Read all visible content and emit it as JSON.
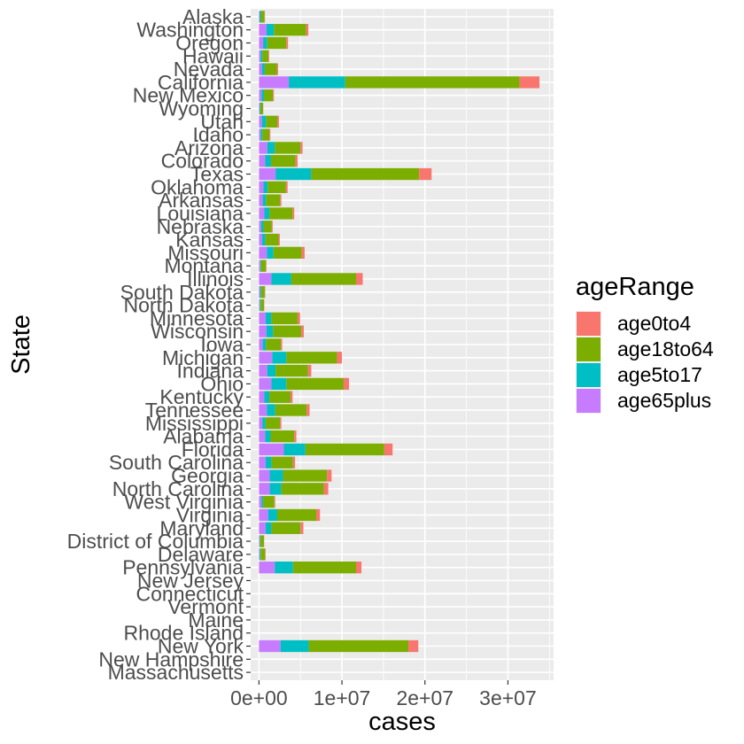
{
  "chart_data": {
    "type": "bar",
    "orientation": "horizontal",
    "stacked": true,
    "xlabel": "cases",
    "ylabel": "State",
    "xlim": [
      -1000000,
      35500000
    ],
    "x_ticks": [
      0,
      10000000,
      20000000,
      30000000
    ],
    "x_tick_labels": [
      "0e+00",
      "1e+07",
      "2e+07",
      "3e+07"
    ],
    "grid": true,
    "legend": {
      "title": "ageRange",
      "placement": "right",
      "entries": [
        "age0to4",
        "age18to64",
        "age5to17",
        "age65plus"
      ]
    },
    "colors": {
      "age0to4": "#F8766D",
      "age18to64": "#7CAE00",
      "age5to17": "#00BFC4",
      "age65plus": "#C77CFF"
    },
    "stack_order": [
      "age65plus",
      "age5to17",
      "age18to64",
      "age0to4"
    ],
    "categories": [
      "Alaska",
      "Washington",
      "Oregon",
      "Hawaii",
      "Nevada",
      "California",
      "New Mexico",
      "Wyoming",
      "Utah",
      "Idaho",
      "Arizona",
      "Colorado",
      "Texas",
      "Oklahoma",
      "Arkansas",
      "Louisiana",
      "Nebraska",
      "Kansas",
      "Missouri",
      "Montana",
      "Illinois",
      "South Dakota",
      "North Dakota",
      "Minnesota",
      "Wisconsin",
      "Iowa",
      "Michigan",
      "Indiana",
      "Ohio",
      "Kentucky",
      "Tennessee",
      "Mississippi",
      "Alabama",
      "Florida",
      "South Carolina",
      "Georgia",
      "North Carolina",
      "West Virginia",
      "Virginia",
      "Maryland",
      "District of Columbia",
      "Delaware",
      "Pennsylvania",
      "New Jersey",
      "Connecticut",
      "Vermont",
      "Maine",
      "Rhode Island",
      "New York",
      "New Hampshire",
      "Massachusetts"
    ],
    "series": [
      {
        "name": "age65plus",
        "values": [
          70000,
          900000,
          500000,
          200000,
          350000,
          3600000,
          300000,
          80000,
          350000,
          200000,
          1000000,
          750000,
          2000000,
          550000,
          450000,
          650000,
          250000,
          380000,
          950000,
          150000,
          1500000,
          120000,
          100000,
          800000,
          900000,
          450000,
          1600000,
          1000000,
          1500000,
          650000,
          950000,
          400000,
          750000,
          3000000,
          800000,
          1300000,
          1300000,
          300000,
          1100000,
          800000,
          80000,
          100000,
          1900000,
          0,
          0,
          0,
          0,
          0,
          2600000,
          0,
          0
        ]
      },
      {
        "name": "age5to17",
        "values": [
          150000,
          900000,
          500000,
          200000,
          350000,
          6800000,
          300000,
          90000,
          500000,
          200000,
          900000,
          700000,
          4300000,
          500000,
          400000,
          600000,
          300000,
          400000,
          800000,
          100000,
          2400000,
          130000,
          100000,
          700000,
          800000,
          400000,
          1700000,
          1000000,
          1800000,
          600000,
          1000000,
          400000,
          650000,
          2600000,
          700000,
          1600000,
          1400000,
          200000,
          1100000,
          700000,
          70000,
          100000,
          2200000,
          0,
          0,
          0,
          0,
          0,
          3400000,
          0,
          0
        ]
      },
      {
        "name": "age18to64",
        "values": [
          450000,
          3900000,
          2300000,
          750000,
          1450000,
          21000000,
          1100000,
          320000,
          1350000,
          850000,
          3100000,
          2950000,
          13000000,
          2200000,
          1700000,
          2800000,
          1000000,
          1580000,
          3400000,
          600000,
          7800000,
          450000,
          400000,
          3150000,
          3400000,
          1800000,
          6100000,
          3900000,
          6900000,
          2550000,
          3800000,
          1750000,
          2850000,
          9500000,
          2600000,
          5300000,
          5100000,
          1350000,
          4700000,
          3500000,
          450000,
          550000,
          7600000,
          0,
          0,
          0,
          0,
          0,
          12000000,
          0,
          0
        ]
      },
      {
        "name": "age0to4",
        "values": [
          50000,
          250000,
          200000,
          80000,
          150000,
          2400000,
          100000,
          30000,
          200000,
          120000,
          250000,
          250000,
          1500000,
          200000,
          150000,
          200000,
          100000,
          150000,
          350000,
          50000,
          800000,
          50000,
          40000,
          300000,
          300000,
          150000,
          600000,
          400000,
          650000,
          250000,
          350000,
          150000,
          250000,
          1000000,
          250000,
          550000,
          550000,
          100000,
          450000,
          350000,
          30000,
          50000,
          650000,
          0,
          0,
          0,
          0,
          0,
          1200000,
          0,
          0
        ]
      }
    ]
  }
}
